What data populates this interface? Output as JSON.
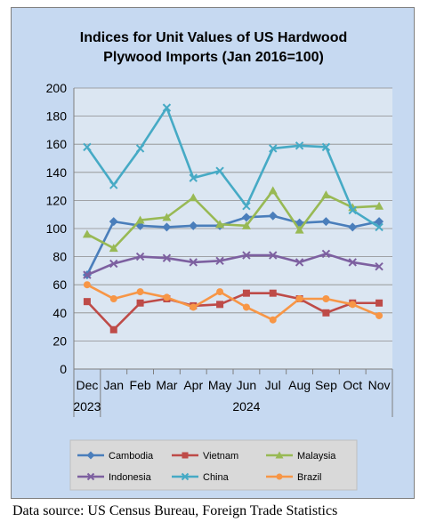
{
  "chart_data": {
    "type": "line",
    "title_lines": [
      "Indices for Unit Values of US Hardwood",
      "Plywood Imports (Jan 2016=100)"
    ],
    "categories": [
      "Dec",
      "Jan",
      "Feb",
      "Mar",
      "Apr",
      "May",
      "Jun",
      "Jul",
      "Aug",
      "Sep",
      "Oct",
      "Nov"
    ],
    "year_labels": [
      "2023",
      "2024"
    ],
    "ylim": [
      0,
      200
    ],
    "yticks": [
      0,
      20,
      40,
      60,
      80,
      100,
      120,
      140,
      160,
      180,
      200
    ],
    "grid": true,
    "legend_position": "bottom",
    "series": [
      {
        "name": "Cambodia",
        "color": "#4a7ebb",
        "marker": "diamond",
        "values": [
          67,
          105,
          102,
          101,
          102,
          102,
          108,
          109,
          104,
          105,
          101,
          105
        ]
      },
      {
        "name": "Vietnam",
        "color": "#be4b48",
        "marker": "square",
        "values": [
          48,
          28,
          47,
          50,
          45,
          46,
          54,
          54,
          50,
          40,
          47,
          47
        ]
      },
      {
        "name": "Malaysia",
        "color": "#98b954",
        "marker": "triangle",
        "values": [
          96,
          86,
          106,
          108,
          122,
          103,
          102,
          127,
          99,
          124,
          115,
          116
        ]
      },
      {
        "name": "Indonesia",
        "color": "#7d60a0",
        "marker": "x",
        "values": [
          67,
          75,
          80,
          79,
          76,
          77,
          81,
          81,
          76,
          82,
          76,
          73
        ]
      },
      {
        "name": "China",
        "color": "#46aac5",
        "marker": "x",
        "values": [
          158,
          131,
          157,
          186,
          136,
          141,
          116,
          157,
          159,
          158,
          113,
          101
        ]
      },
      {
        "name": "Brazil",
        "color": "#f79646",
        "marker": "circle",
        "values": [
          60,
          50,
          55,
          51,
          44,
          55,
          44,
          35,
          50,
          50,
          46,
          38
        ]
      }
    ]
  },
  "footer": {
    "source": "Data source: US Census Bureau, Foreign Trade Statistics"
  }
}
